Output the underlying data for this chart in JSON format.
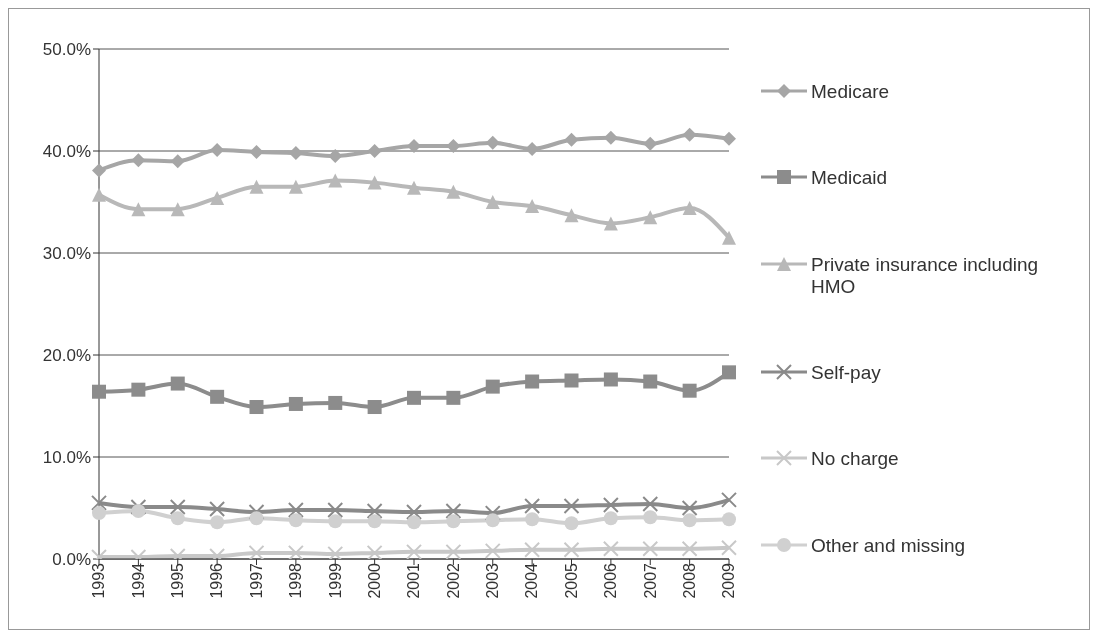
{
  "chart_data": {
    "type": "line",
    "categories": [
      "1993",
      "1994",
      "1995",
      "1996",
      "1997",
      "1998",
      "1999",
      "2000",
      "2001",
      "2002",
      "2003",
      "2004",
      "2005",
      "2006",
      "2007",
      "2008",
      "2009"
    ],
    "series": [
      {
        "name": "Medicare",
        "color": "#a6a6a6",
        "marker": "diamond",
        "values": [
          38.1,
          39.1,
          39.0,
          40.1,
          39.9,
          39.8,
          39.5,
          40.0,
          40.5,
          40.5,
          40.8,
          40.2,
          41.1,
          41.3,
          40.7,
          41.6,
          41.2
        ]
      },
      {
        "name": "Medicaid",
        "color": "#8c8c8c",
        "marker": "square",
        "values": [
          16.4,
          16.6,
          17.2,
          15.9,
          14.9,
          15.2,
          15.3,
          14.9,
          15.8,
          15.8,
          16.9,
          17.4,
          17.5,
          17.6,
          17.4,
          16.5,
          18.3
        ]
      },
      {
        "name": "Private insurance including HMO",
        "color": "#b8b8b8",
        "marker": "triangle",
        "values": [
          35.7,
          34.3,
          34.3,
          35.4,
          36.5,
          36.5,
          37.1,
          36.9,
          36.4,
          36.0,
          35.0,
          34.6,
          33.7,
          32.9,
          33.5,
          34.4,
          31.5
        ]
      },
      {
        "name": "Self-pay",
        "color": "#8a8a8a",
        "marker": "cross",
        "values": [
          5.5,
          5.1,
          5.1,
          4.9,
          4.6,
          4.8,
          4.8,
          4.7,
          4.6,
          4.7,
          4.5,
          5.2,
          5.2,
          5.3,
          5.4,
          5.0,
          5.8
        ]
      },
      {
        "name": "No charge",
        "color": "#c8c8c8",
        "marker": "cross",
        "values": [
          0.2,
          0.2,
          0.3,
          0.3,
          0.6,
          0.6,
          0.5,
          0.6,
          0.7,
          0.7,
          0.8,
          0.9,
          0.9,
          1.0,
          1.0,
          1.0,
          1.1
        ]
      },
      {
        "name": "Other and missing",
        "color": "#d0d0d0",
        "marker": "circle",
        "values": [
          4.5,
          4.7,
          4.0,
          3.6,
          4.0,
          3.8,
          3.7,
          3.7,
          3.6,
          3.7,
          3.8,
          3.9,
          3.5,
          4.0,
          4.1,
          3.8,
          3.9
        ]
      }
    ],
    "ylim": [
      0,
      50
    ],
    "yticks": [
      {
        "value": 0,
        "label": "0.0%"
      },
      {
        "value": 10,
        "label": "10.0%"
      },
      {
        "value": 20,
        "label": "20.0%"
      },
      {
        "value": 30,
        "label": "30.0%"
      },
      {
        "value": 40,
        "label": "40.0%"
      },
      {
        "value": 50,
        "label": "50.0%"
      }
    ],
    "grid": "y",
    "legend": "right"
  }
}
